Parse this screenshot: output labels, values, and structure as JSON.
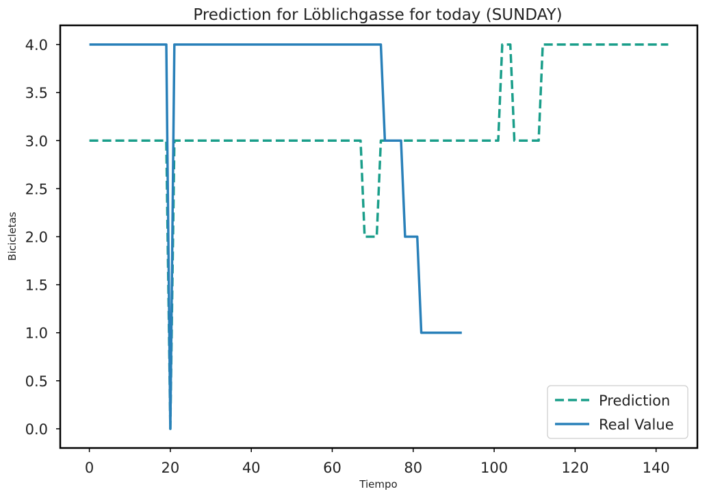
{
  "chart_data": {
    "type": "line",
    "title": "Prediction for Löblichgasse for today (SUNDAY)",
    "xlabel": "Tiempo",
    "ylabel": "Bicicletas",
    "xlim": [
      -7.2,
      150.2
    ],
    "ylim": [
      -0.2,
      4.2
    ],
    "xticks": [
      0,
      20,
      40,
      60,
      80,
      100,
      120,
      140
    ],
    "xtick_labels": [
      "0",
      "20",
      "40",
      "60",
      "80",
      "100",
      "120",
      "140"
    ],
    "yticks": [
      0,
      0.5,
      1,
      1.5,
      2,
      2.5,
      3,
      3.5,
      4
    ],
    "ytick_labels": [
      "0.0",
      "0.5",
      "1.0",
      "1.5",
      "2.0",
      "2.5",
      "3.0",
      "3.5",
      "4.0"
    ],
    "grid": false,
    "legend_position": "lower-right",
    "series": [
      {
        "name": "Prediction",
        "color": "#1a9e8a",
        "style": "dashed",
        "x": [
          0,
          19,
          20,
          21,
          67,
          68,
          71,
          72,
          101,
          102,
          104,
          105,
          111,
          112,
          143
        ],
        "y": [
          3,
          3,
          0,
          3,
          3,
          2,
          2,
          3,
          3,
          4,
          4,
          3,
          3,
          4,
          4
        ]
      },
      {
        "name": "Real Value",
        "color": "#2980b9",
        "style": "solid",
        "x": [
          0,
          19,
          20,
          21,
          72,
          73,
          77,
          78,
          81,
          82,
          92
        ],
        "y": [
          4,
          4,
          0,
          4,
          4,
          3,
          3,
          2,
          2,
          1,
          1
        ]
      }
    ]
  }
}
